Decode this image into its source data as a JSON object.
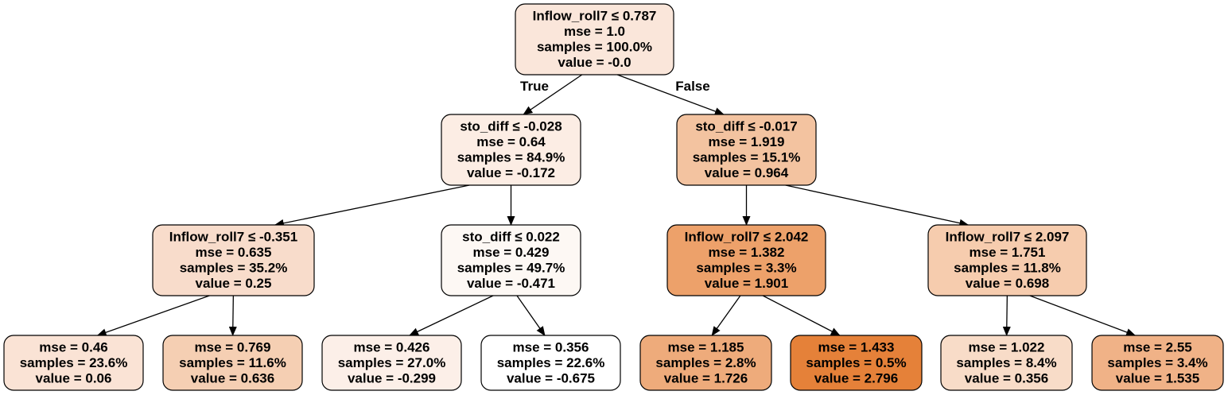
{
  "tree": {
    "edge_labels": {
      "true_label": "True",
      "false_label": "False"
    },
    "nodes": [
      {
        "id": "n0",
        "lines": [
          "Inflow_roll7 ≤ 0.787",
          "mse = 1.0",
          "samples = 100.0%",
          "value = -0.0"
        ],
        "fill": "#fae6da"
      },
      {
        "id": "n1",
        "lines": [
          "sto_diff ≤ -0.028",
          "mse = 0.64",
          "samples = 84.9%",
          "value = -0.172"
        ],
        "fill": "#fcede4"
      },
      {
        "id": "n2",
        "lines": [
          "sto_diff ≤ -0.017",
          "mse = 1.919",
          "samples = 15.1%",
          "value = 0.964"
        ],
        "fill": "#f3c3a0"
      },
      {
        "id": "n3",
        "lines": [
          "Inflow_roll7 ≤ -0.351",
          "mse = 0.635",
          "samples = 35.2%",
          "value = 0.25"
        ],
        "fill": "#f8dccb"
      },
      {
        "id": "n4",
        "lines": [
          "sto_diff ≤ 0.022",
          "mse = 0.429",
          "samples = 49.7%",
          "value = -0.471"
        ],
        "fill": "#fdf8f4"
      },
      {
        "id": "n5",
        "lines": [
          "Inflow_roll7 ≤ 2.042",
          "mse = 1.382",
          "samples = 3.3%",
          "value = 1.901"
        ],
        "fill": "#eda16a"
      },
      {
        "id": "n6",
        "lines": [
          "Inflow_roll7 ≤ 2.097",
          "mse = 1.751",
          "samples = 11.8%",
          "value = 0.698"
        ],
        "fill": "#f6ccae"
      },
      {
        "id": "n7",
        "lines": [
          "mse = 0.46",
          "samples = 23.6%",
          "value = 0.06"
        ],
        "fill": "#fae3d5"
      },
      {
        "id": "n8",
        "lines": [
          "mse = 0.769",
          "samples = 11.6%",
          "value = 0.636"
        ],
        "fill": "#f5cfb3"
      },
      {
        "id": "n9",
        "lines": [
          "mse = 0.426",
          "samples = 27.0%",
          "value = -0.299"
        ],
        "fill": "#fcefe8"
      },
      {
        "id": "n10",
        "lines": [
          "mse = 0.356",
          "samples = 22.6%",
          "value = -0.675"
        ],
        "fill": "#ffffff"
      },
      {
        "id": "n11",
        "lines": [
          "mse = 1.185",
          "samples = 2.8%",
          "value = 1.726"
        ],
        "fill": "#eeab7b"
      },
      {
        "id": "n12",
        "lines": [
          "mse = 1.433",
          "samples = 0.5%",
          "value = 2.796"
        ],
        "fill": "#e58139"
      },
      {
        "id": "n13",
        "lines": [
          "mse = 1.022",
          "samples = 8.4%",
          "value = 0.356"
        ],
        "fill": "#f8dcc8"
      },
      {
        "id": "n14",
        "lines": [
          "mse = 2.55",
          "samples = 3.4%",
          "value = 1.535"
        ],
        "fill": "#f0b287"
      }
    ],
    "edges": [
      {
        "from": "n0",
        "to": "n1",
        "label": "true"
      },
      {
        "from": "n0",
        "to": "n2",
        "label": "false"
      },
      {
        "from": "n1",
        "to": "n3"
      },
      {
        "from": "n1",
        "to": "n4"
      },
      {
        "from": "n2",
        "to": "n5"
      },
      {
        "from": "n2",
        "to": "n6"
      },
      {
        "from": "n3",
        "to": "n7"
      },
      {
        "from": "n3",
        "to": "n8"
      },
      {
        "from": "n4",
        "to": "n9"
      },
      {
        "from": "n4",
        "to": "n10"
      },
      {
        "from": "n5",
        "to": "n11"
      },
      {
        "from": "n5",
        "to": "n12"
      },
      {
        "from": "n6",
        "to": "n13"
      },
      {
        "from": "n6",
        "to": "n14"
      }
    ]
  }
}
